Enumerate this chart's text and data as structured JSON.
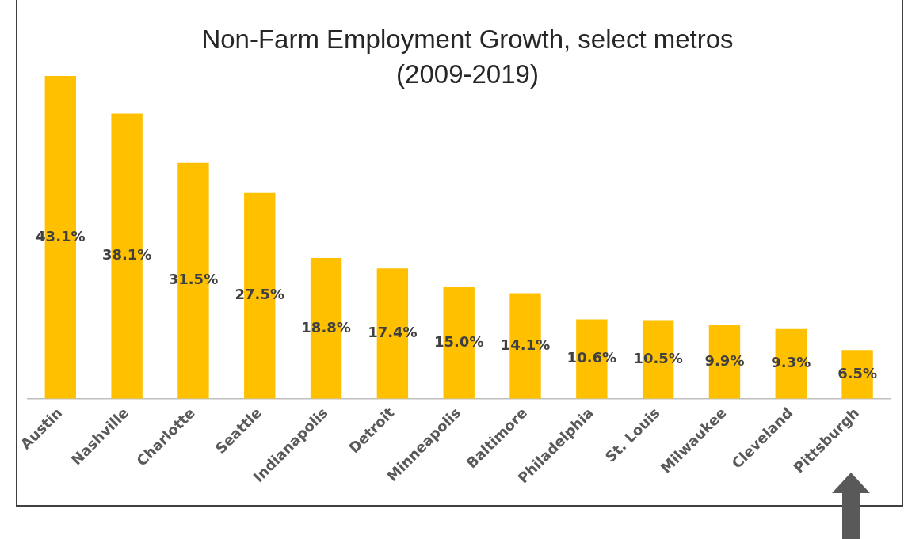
{
  "chart_data": {
    "type": "bar",
    "title": "Non-Farm Employment Growth, select metros (2009-2019)",
    "categories": [
      "Austin",
      "Nashville",
      "Charlotte",
      "Seattle",
      "Indianapolis",
      "Detroit",
      "Minneapolis",
      "Baltimore",
      "Philadelphia",
      "St. Louis",
      "Milwaukee",
      "Cleveland",
      "Pittsburgh"
    ],
    "values": [
      43.1,
      38.1,
      31.5,
      27.5,
      18.8,
      17.4,
      15.0,
      14.1,
      10.6,
      10.5,
      9.9,
      9.3,
      6.5
    ],
    "value_labels": [
      "43.1%",
      "38.1%",
      "31.5%",
      "27.5%",
      "18.8%",
      "17.4%",
      "15.0%",
      "14.1%",
      "10.6%",
      "10.5%",
      "9.9%",
      "9.3%",
      "6.5%"
    ],
    "color": "#ffc000",
    "grid": false,
    "legend": false,
    "tick_labels": "x"
  }
}
